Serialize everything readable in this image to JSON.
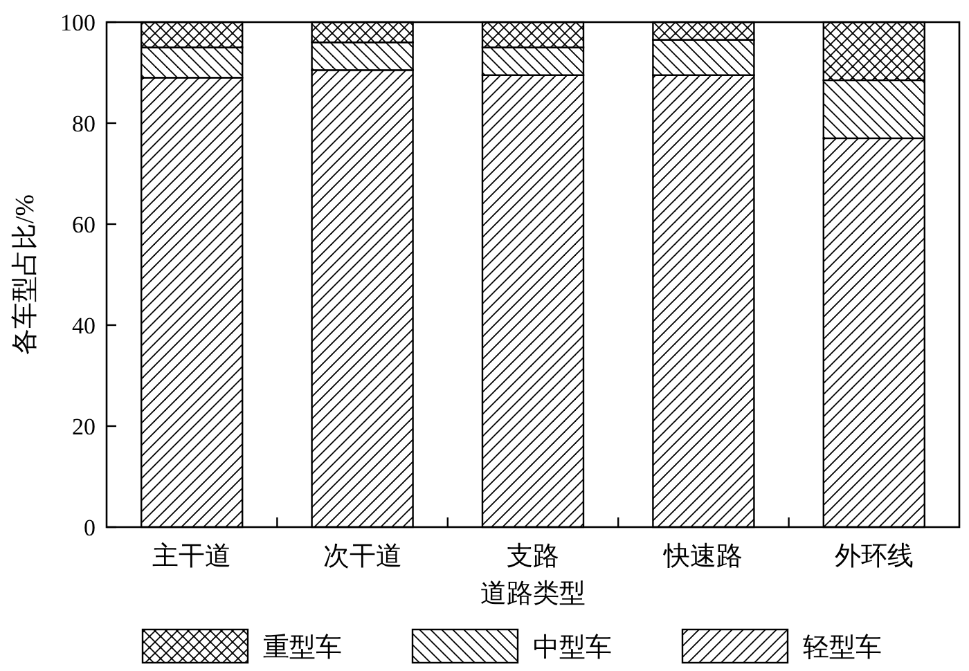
{
  "chart_data": {
    "type": "bar",
    "stacked": true,
    "xlabel": "道路类型",
    "ylabel": "各车型占比/%",
    "categories": [
      "主干道",
      "次干道",
      "支路",
      "快速路",
      "外环线"
    ],
    "series": [
      {
        "name": "轻型车",
        "color": "#000000",
        "values": [
          89,
          90.5,
          89.5,
          89.5,
          77
        ]
      },
      {
        "name": "中型车",
        "color": "#000000",
        "values": [
          6,
          5.5,
          5.5,
          7,
          11.5
        ]
      },
      {
        "name": "重型车",
        "color": "#000000",
        "values": [
          5,
          4,
          5,
          3.5,
          11.5
        ]
      }
    ],
    "ylim": [
      0,
      100
    ],
    "yticks": [
      0,
      20,
      40,
      60,
      80,
      100
    ],
    "grid": false,
    "legend": "bottom"
  }
}
